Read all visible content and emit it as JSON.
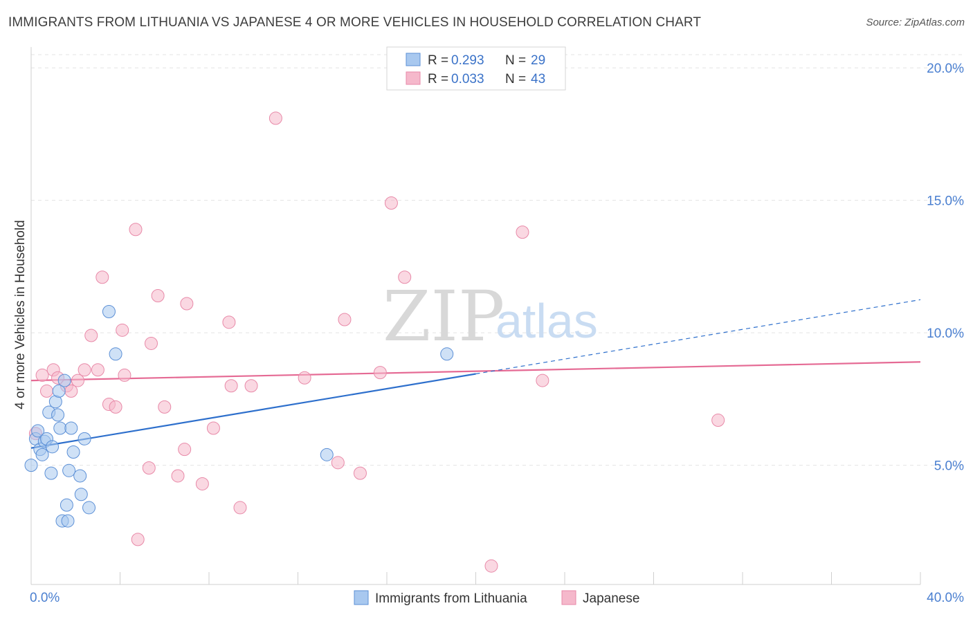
{
  "header": {
    "title": "IMMIGRANTS FROM LITHUANIA VS JAPANESE 4 OR MORE VEHICLES IN HOUSEHOLD CORRELATION CHART",
    "source": "Source: ZipAtlas.com"
  },
  "watermark": {
    "zip": "ZIP",
    "atlas": "atlas"
  },
  "legend": {
    "items": [
      {
        "r_label": "R =",
        "r_value": "0.293",
        "n_label": "N =",
        "n_value": "29"
      },
      {
        "r_label": "R =",
        "r_value": "0.033",
        "n_label": "N =",
        "n_value": "43"
      }
    ]
  },
  "bottom_legend": {
    "series1": "Immigrants from Lithuania",
    "series2": "Japanese"
  },
  "colors": {
    "series1_fill": "#a8c8ef",
    "series1_stroke": "#5b8fd6",
    "series1_line": "#2d6fcc",
    "series2_fill": "#f5b8cb",
    "series2_stroke": "#e889a8",
    "series2_line": "#e56a94",
    "tick_text": "#4a7fd0"
  },
  "chart_data": {
    "type": "scatter",
    "title": "IMMIGRANTS FROM LITHUANIA VS JAPANESE 4 OR MORE VEHICLES IN HOUSEHOLD CORRELATION CHART",
    "xlabel": "",
    "ylabel": "4 or more Vehicles in Household",
    "xlim": [
      0,
      40
    ],
    "ylim": [
      0.5,
      20.5
    ],
    "x_tick_labels": [
      "0.0%",
      "40.0%"
    ],
    "y_ticks": [
      5,
      10,
      15,
      20
    ],
    "y_tick_labels": [
      "5.0%",
      "10.0%",
      "15.0%",
      "20.0%"
    ],
    "grid": true,
    "legend_position": "top-center",
    "series": [
      {
        "name": "Immigrants from Lithuania",
        "points": [
          [
            0.0,
            5.0
          ],
          [
            0.2,
            6.0
          ],
          [
            0.3,
            6.3
          ],
          [
            0.4,
            5.6
          ],
          [
            0.5,
            5.4
          ],
          [
            0.6,
            5.9
          ],
          [
            0.7,
            6.0
          ],
          [
            0.8,
            7.0
          ],
          [
            0.9,
            4.7
          ],
          [
            0.95,
            5.7
          ],
          [
            1.1,
            7.4
          ],
          [
            1.2,
            6.9
          ],
          [
            1.25,
            7.8
          ],
          [
            1.3,
            6.4
          ],
          [
            1.4,
            2.9
          ],
          [
            1.5,
            8.2
          ],
          [
            1.6,
            3.5
          ],
          [
            1.65,
            2.9
          ],
          [
            1.7,
            4.8
          ],
          [
            1.8,
            6.4
          ],
          [
            1.9,
            5.5
          ],
          [
            2.2,
            4.6
          ],
          [
            2.25,
            3.9
          ],
          [
            2.4,
            6.0
          ],
          [
            2.6,
            3.4
          ],
          [
            3.5,
            10.8
          ],
          [
            3.8,
            9.2
          ],
          [
            13.3,
            5.4
          ],
          [
            18.7,
            9.2
          ]
        ],
        "trend": {
          "x": [
            0,
            20
          ],
          "y": [
            5.65,
            8.45
          ]
        },
        "trend_extension": {
          "x": [
            20,
            40
          ],
          "y": [
            8.45,
            11.25
          ]
        }
      },
      {
        "name": "Japanese",
        "points": [
          [
            0.2,
            6.2
          ],
          [
            0.5,
            8.4
          ],
          [
            0.7,
            7.8
          ],
          [
            1.0,
            8.6
          ],
          [
            1.2,
            8.3
          ],
          [
            1.6,
            8.0
          ],
          [
            1.8,
            7.8
          ],
          [
            2.1,
            8.2
          ],
          [
            2.4,
            8.6
          ],
          [
            2.7,
            9.9
          ],
          [
            3.0,
            8.6
          ],
          [
            3.2,
            12.1
          ],
          [
            3.5,
            7.3
          ],
          [
            3.8,
            7.2
          ],
          [
            4.1,
            10.1
          ],
          [
            4.2,
            8.4
          ],
          [
            4.7,
            13.9
          ],
          [
            4.8,
            2.2
          ],
          [
            5.3,
            4.9
          ],
          [
            5.4,
            9.6
          ],
          [
            5.7,
            11.4
          ],
          [
            6.0,
            7.2
          ],
          [
            6.6,
            4.6
          ],
          [
            6.9,
            5.6
          ],
          [
            7.0,
            11.1
          ],
          [
            7.7,
            4.3
          ],
          [
            8.2,
            6.4
          ],
          [
            8.9,
            10.4
          ],
          [
            9.0,
            8.0
          ],
          [
            9.4,
            3.4
          ],
          [
            9.9,
            8.0
          ],
          [
            11.0,
            18.1
          ],
          [
            12.3,
            8.3
          ],
          [
            13.8,
            5.1
          ],
          [
            14.1,
            10.5
          ],
          [
            14.8,
            4.7
          ],
          [
            15.7,
            8.5
          ],
          [
            16.2,
            14.9
          ],
          [
            16.8,
            12.1
          ],
          [
            20.7,
            1.2
          ],
          [
            22.1,
            13.8
          ],
          [
            23.0,
            8.2
          ],
          [
            30.9,
            6.7
          ]
        ],
        "trend": {
          "x": [
            0,
            40
          ],
          "y": [
            8.2,
            8.9
          ]
        }
      }
    ]
  }
}
